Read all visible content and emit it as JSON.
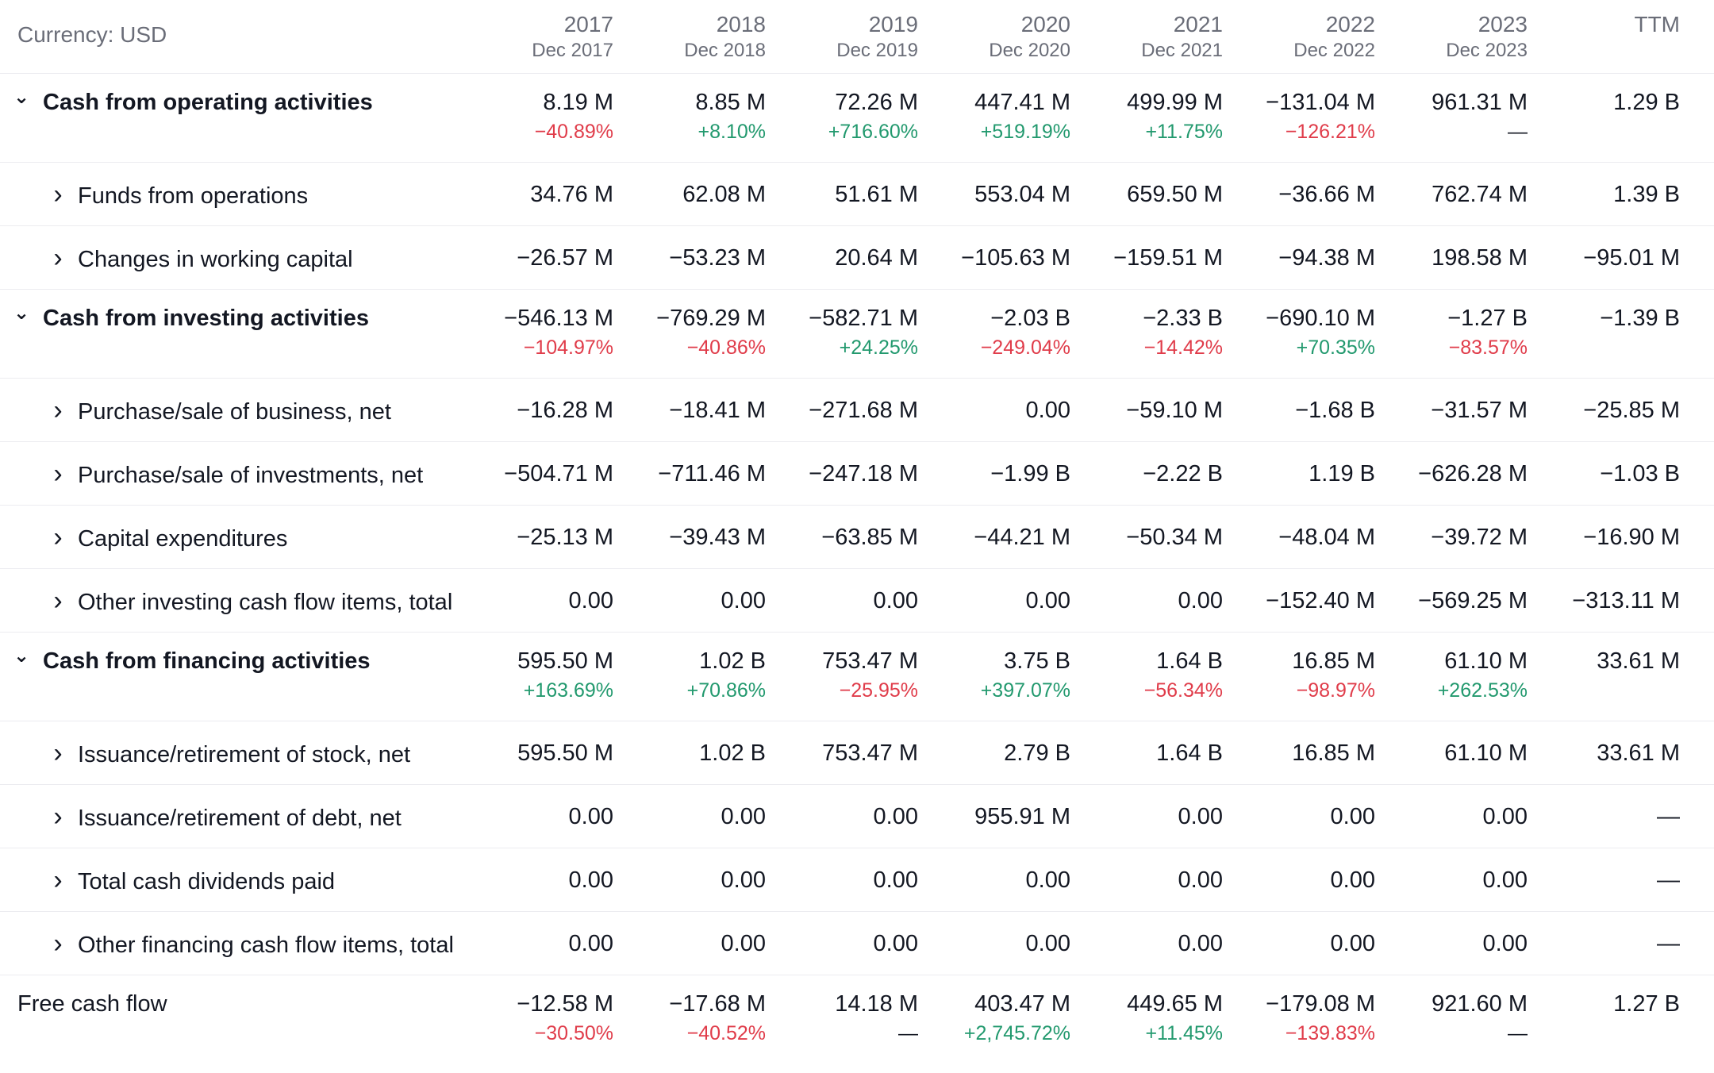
{
  "currency_label": "Currency: USD",
  "columns": [
    {
      "year": "2017",
      "date": "Dec 2017"
    },
    {
      "year": "2018",
      "date": "Dec 2018"
    },
    {
      "year": "2019",
      "date": "Dec 2019"
    },
    {
      "year": "2020",
      "date": "Dec 2020"
    },
    {
      "year": "2021",
      "date": "Dec 2021"
    },
    {
      "year": "2022",
      "date": "Dec 2022"
    },
    {
      "year": "2023",
      "date": "Dec 2023"
    },
    {
      "year": "TTM",
      "date": ""
    }
  ],
  "colors": {
    "positive": "#22996e",
    "negative": "#e03c4a",
    "neutral": "#131722"
  },
  "rows": [
    {
      "type": "section",
      "chevron": "down",
      "label": "Cash from operating activities",
      "values": [
        "8.19 M",
        "8.85 M",
        "72.26 M",
        "447.41 M",
        "499.99 M",
        "−131.04 M",
        "961.31 M",
        "1.29 B"
      ],
      "changes": [
        "−40.89%",
        "+8.10%",
        "+716.60%",
        "+519.19%",
        "+11.75%",
        "−126.21%",
        "—",
        ""
      ]
    },
    {
      "type": "sub",
      "chevron": "right",
      "label": "Funds from operations",
      "values": [
        "34.76 M",
        "62.08 M",
        "51.61 M",
        "553.04 M",
        "659.50 M",
        "−36.66 M",
        "762.74 M",
        "1.39 B"
      ]
    },
    {
      "type": "sub",
      "chevron": "right",
      "label": "Changes in working capital",
      "values": [
        "−26.57 M",
        "−53.23 M",
        "20.64 M",
        "−105.63 M",
        "−159.51 M",
        "−94.38 M",
        "198.58 M",
        "−95.01 M"
      ]
    },
    {
      "type": "section",
      "chevron": "down",
      "label": "Cash from investing activities",
      "values": [
        "−546.13 M",
        "−769.29 M",
        "−582.71 M",
        "−2.03 B",
        "−2.33 B",
        "−690.10 M",
        "−1.27 B",
        "−1.39 B"
      ],
      "changes": [
        "−104.97%",
        "−40.86%",
        "+24.25%",
        "−249.04%",
        "−14.42%",
        "+70.35%",
        "−83.57%",
        ""
      ]
    },
    {
      "type": "sub",
      "chevron": "right",
      "label": "Purchase/sale of business, net",
      "values": [
        "−16.28 M",
        "−18.41 M",
        "−271.68 M",
        "0.00",
        "−59.10 M",
        "−1.68 B",
        "−31.57 M",
        "−25.85 M"
      ]
    },
    {
      "type": "sub",
      "chevron": "right",
      "label": "Purchase/sale of investments, net",
      "values": [
        "−504.71 M",
        "−711.46 M",
        "−247.18 M",
        "−1.99 B",
        "−2.22 B",
        "1.19 B",
        "−626.28 M",
        "−1.03 B"
      ]
    },
    {
      "type": "sub",
      "chevron": "right",
      "label": "Capital expenditures",
      "values": [
        "−25.13 M",
        "−39.43 M",
        "−63.85 M",
        "−44.21 M",
        "−50.34 M",
        "−48.04 M",
        "−39.72 M",
        "−16.90 M"
      ]
    },
    {
      "type": "sub",
      "chevron": "right",
      "label": "Other investing cash flow items, total",
      "values": [
        "0.00",
        "0.00",
        "0.00",
        "0.00",
        "0.00",
        "−152.40 M",
        "−569.25 M",
        "−313.11 M"
      ]
    },
    {
      "type": "section",
      "chevron": "down",
      "label": "Cash from financing activities",
      "values": [
        "595.50 M",
        "1.02 B",
        "753.47 M",
        "3.75 B",
        "1.64 B",
        "16.85 M",
        "61.10 M",
        "33.61 M"
      ],
      "changes": [
        "+163.69%",
        "+70.86%",
        "−25.95%",
        "+397.07%",
        "−56.34%",
        "−98.97%",
        "+262.53%",
        ""
      ]
    },
    {
      "type": "sub",
      "chevron": "right",
      "label": "Issuance/retirement of stock, net",
      "values": [
        "595.50 M",
        "1.02 B",
        "753.47 M",
        "2.79 B",
        "1.64 B",
        "16.85 M",
        "61.10 M",
        "33.61 M"
      ]
    },
    {
      "type": "sub",
      "chevron": "right",
      "label": "Issuance/retirement of debt, net",
      "values": [
        "0.00",
        "0.00",
        "0.00",
        "955.91 M",
        "0.00",
        "0.00",
        "0.00",
        "—"
      ]
    },
    {
      "type": "sub",
      "chevron": "right",
      "label": "Total cash dividends paid",
      "values": [
        "0.00",
        "0.00",
        "0.00",
        "0.00",
        "0.00",
        "0.00",
        "0.00",
        "—"
      ]
    },
    {
      "type": "sub",
      "chevron": "right",
      "label": "Other financing cash flow items, total",
      "values": [
        "0.00",
        "0.00",
        "0.00",
        "0.00",
        "0.00",
        "0.00",
        "0.00",
        "—"
      ]
    },
    {
      "type": "total",
      "chevron": "",
      "label": "Free cash flow",
      "values": [
        "−12.58 M",
        "−17.68 M",
        "14.18 M",
        "403.47 M",
        "449.65 M",
        "−179.08 M",
        "921.60 M",
        "1.27 B"
      ],
      "changes": [
        "−30.50%",
        "−40.52%",
        "—",
        "+2,745.72%",
        "+11.45%",
        "−139.83%",
        "—",
        ""
      ]
    }
  ]
}
